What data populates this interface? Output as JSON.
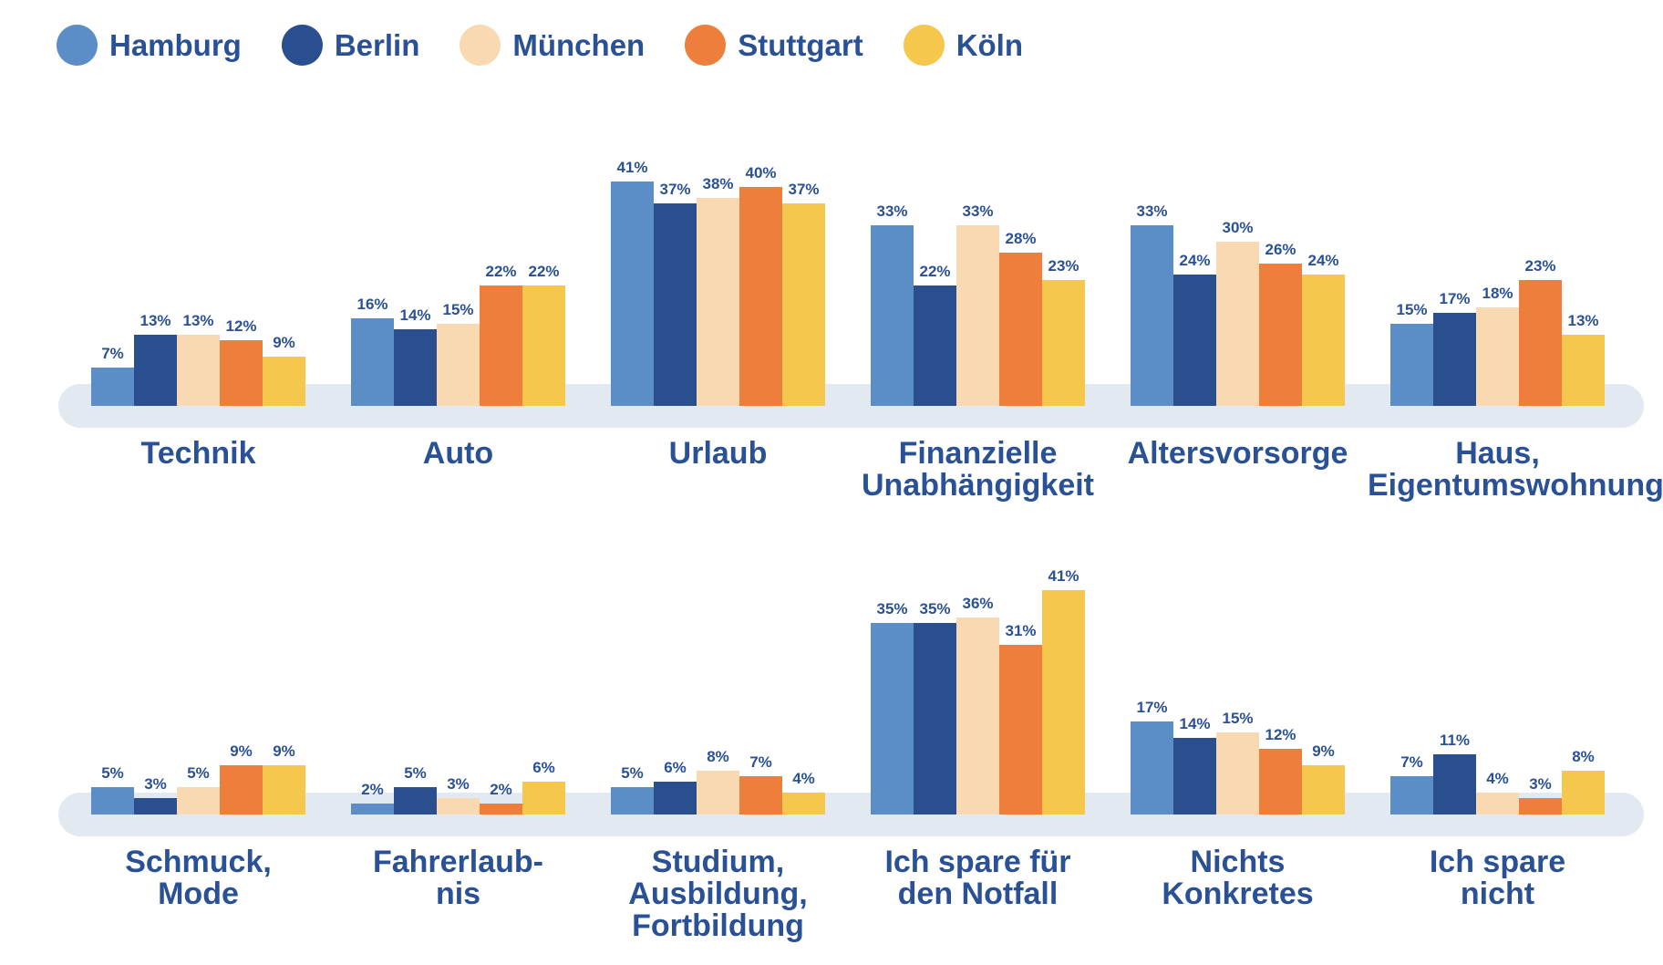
{
  "colors": {
    "label_text": "#2A5196",
    "track": "#E3E9F1",
    "background": "#FFFFFF"
  },
  "chart_data": {
    "type": "bar",
    "unit": "%",
    "title": "",
    "grid": false,
    "legend_position": "top-left",
    "ylim": [
      0,
      45
    ],
    "series": [
      {
        "name": "Hamburg",
        "color": "#5B8EC6"
      },
      {
        "name": "Berlin",
        "color": "#2A4F8E"
      },
      {
        "name": "München",
        "color": "#F8D9B1"
      },
      {
        "name": "Stuttgart",
        "color": "#EE7E3C"
      },
      {
        "name": "Köln",
        "color": "#F6C74D"
      }
    ],
    "rows": [
      {
        "groups": [
          {
            "label": "Technik",
            "values": [
              7,
              13,
              13,
              12,
              9
            ]
          },
          {
            "label": "Auto",
            "values": [
              16,
              14,
              15,
              22,
              22
            ]
          },
          {
            "label": "Urlaub",
            "values": [
              41,
              37,
              38,
              40,
              37
            ]
          },
          {
            "label": "Finanzielle\nUnabhängigkeit",
            "values": [
              33,
              22,
              33,
              28,
              23
            ]
          },
          {
            "label": "Altersvorsorge",
            "values": [
              33,
              24,
              30,
              26,
              24
            ]
          },
          {
            "label": "Haus,\nEigentumswohnung",
            "values": [
              15,
              17,
              18,
              23,
              13
            ]
          }
        ]
      },
      {
        "groups": [
          {
            "label": "Schmuck,\nMode",
            "values": [
              5,
              3,
              5,
              9,
              9
            ]
          },
          {
            "label": "Fahrerlaub-\nnis",
            "values": [
              2,
              5,
              3,
              2,
              6
            ]
          },
          {
            "label": "Studium,\nAusbildung,\nFortbildung",
            "values": [
              5,
              6,
              8,
              7,
              4
            ]
          },
          {
            "label": "Ich spare für\nden Notfall",
            "values": [
              35,
              35,
              36,
              31,
              41
            ]
          },
          {
            "label": "Nichts\nKonkretes",
            "values": [
              17,
              14,
              15,
              12,
              9
            ]
          },
          {
            "label": "Ich spare\nnicht",
            "values": [
              7,
              11,
              4,
              3,
              8
            ]
          }
        ]
      }
    ]
  }
}
